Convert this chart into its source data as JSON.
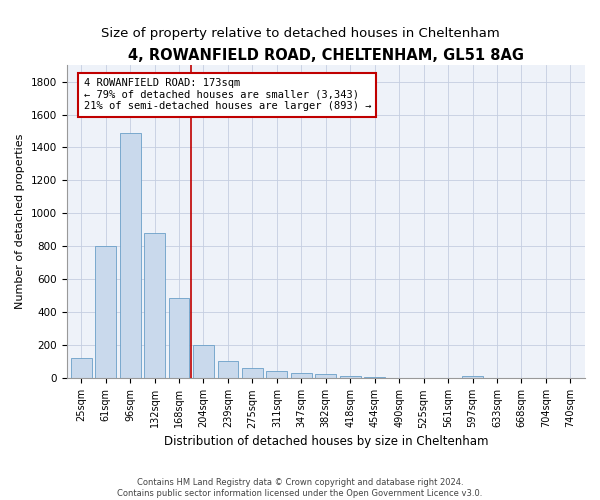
{
  "title": "4, ROWANFIELD ROAD, CHELTENHAM, GL51 8AG",
  "subtitle": "Size of property relative to detached houses in Cheltenham",
  "xlabel": "Distribution of detached houses by size in Cheltenham",
  "ylabel": "Number of detached properties",
  "footnote": "Contains HM Land Registry data © Crown copyright and database right 2024.\nContains public sector information licensed under the Open Government Licence v3.0.",
  "categories": [
    "25sqm",
    "61sqm",
    "96sqm",
    "132sqm",
    "168sqm",
    "204sqm",
    "239sqm",
    "275sqm",
    "311sqm",
    "347sqm",
    "382sqm",
    "418sqm",
    "454sqm",
    "490sqm",
    "525sqm",
    "561sqm",
    "597sqm",
    "633sqm",
    "668sqm",
    "704sqm",
    "740sqm"
  ],
  "values": [
    125,
    800,
    1490,
    880,
    490,
    205,
    105,
    65,
    42,
    35,
    28,
    15,
    8,
    3,
    2,
    1,
    15,
    0,
    0,
    0,
    0
  ],
  "bar_color": "#c9d9ec",
  "bar_edge_color": "#6a9fc8",
  "vline_color": "#c00000",
  "vline_x": 4.5,
  "annotation_text": "4 ROWANFIELD ROAD: 173sqm\n← 79% of detached houses are smaller (3,343)\n21% of semi-detached houses are larger (893) →",
  "annotation_box_color": "#c00000",
  "ylim": [
    0,
    1900
  ],
  "yticks": [
    0,
    200,
    400,
    600,
    800,
    1000,
    1200,
    1400,
    1600,
    1800
  ],
  "background_color": "#eef2f9",
  "grid_color": "#c5cee0",
  "title_fontsize": 10.5,
  "subtitle_fontsize": 9.5,
  "xlabel_fontsize": 8.5,
  "ylabel_fontsize": 8,
  "tick_fontsize": 7,
  "annotation_fontsize": 7.5,
  "figwidth": 6.0,
  "figheight": 5.0
}
